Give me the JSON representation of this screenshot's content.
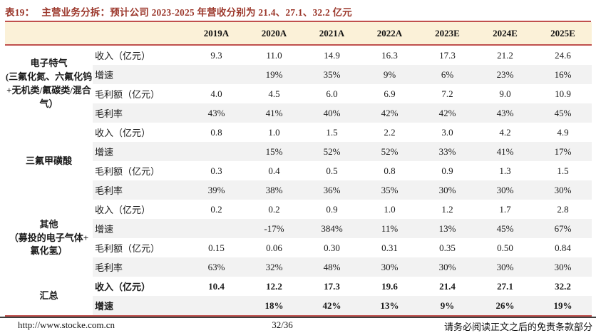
{
  "title": {
    "label": "表19：",
    "text": "主营业务分拆：预计公司 2023-2025 年营收分别为 21.4、27.1、32.2 亿元"
  },
  "colors": {
    "accent_red": "#c0504d",
    "title_red": "#9c382c",
    "header_bg": "#fbf1d8",
    "stripe_gray": "#f2f2f2"
  },
  "table": {
    "year_headers": [
      "2019A",
      "2020A",
      "2021A",
      "2022A",
      "2023E",
      "2024E",
      "2025E"
    ],
    "groups": [
      {
        "name": "电子特气\n(三氟化氮、六氟化钨\n+无机类/氟碳类/混合\n气）",
        "rows": [
          {
            "label": "收入（亿元）",
            "values": [
              "9.3",
              "11.0",
              "14.9",
              "16.3",
              "17.3",
              "21.2",
              "24.6"
            ]
          },
          {
            "label": "增速",
            "values": [
              "",
              "19%",
              "35%",
              "9%",
              "6%",
              "23%",
              "16%"
            ]
          },
          {
            "label": "毛利额（亿元）",
            "values": [
              "4.0",
              "4.5",
              "6.0",
              "6.9",
              "7.2",
              "9.0",
              "10.9"
            ]
          },
          {
            "label": "毛利率",
            "values": [
              "43%",
              "41%",
              "40%",
              "42%",
              "42%",
              "43%",
              "45%"
            ]
          }
        ]
      },
      {
        "name": "三氟甲磺酸",
        "rows": [
          {
            "label": "收入（亿元）",
            "values": [
              "0.8",
              "1.0",
              "1.5",
              "2.2",
              "3.0",
              "4.2",
              "4.9"
            ]
          },
          {
            "label": "增速",
            "values": [
              "",
              "15%",
              "52%",
              "52%",
              "33%",
              "41%",
              "17%"
            ]
          },
          {
            "label": "毛利额（亿元）",
            "values": [
              "0.3",
              "0.4",
              "0.5",
              "0.8",
              "0.9",
              "1.3",
              "1.5"
            ]
          },
          {
            "label": "毛利率",
            "values": [
              "39%",
              "38%",
              "36%",
              "35%",
              "30%",
              "30%",
              "30%"
            ]
          }
        ]
      },
      {
        "name": "其他\n（募投的电子气体+\n氯化氢）",
        "rows": [
          {
            "label": "收入（亿元）",
            "values": [
              "0.2",
              "0.2",
              "0.9",
              "1.0",
              "1.2",
              "1.7",
              "2.8"
            ]
          },
          {
            "label": "增速",
            "values": [
              "",
              "-17%",
              "384%",
              "11%",
              "13%",
              "45%",
              "67%"
            ]
          },
          {
            "label": "毛利额（亿元）",
            "values": [
              "0.15",
              "0.06",
              "0.30",
              "0.31",
              "0.35",
              "0.50",
              "0.84"
            ]
          },
          {
            "label": "毛利率",
            "values": [
              "63%",
              "32%",
              "48%",
              "30%",
              "30%",
              "30%",
              "30%"
            ]
          }
        ]
      },
      {
        "name": "汇总",
        "rows": [
          {
            "label": "收入（亿元）",
            "values": [
              "10.4",
              "12.2",
              "17.3",
              "19.6",
              "21.4",
              "27.1",
              "32.2"
            ]
          },
          {
            "label": "增速",
            "values": [
              "",
              "18%",
              "42%",
              "13%",
              "9%",
              "26%",
              "19%"
            ]
          }
        ]
      }
    ]
  },
  "footer": {
    "url": "http://www.stocke.com.cn",
    "page": "32/36",
    "disclaimer": "请务必阅读正文之后的免责条款部分"
  }
}
